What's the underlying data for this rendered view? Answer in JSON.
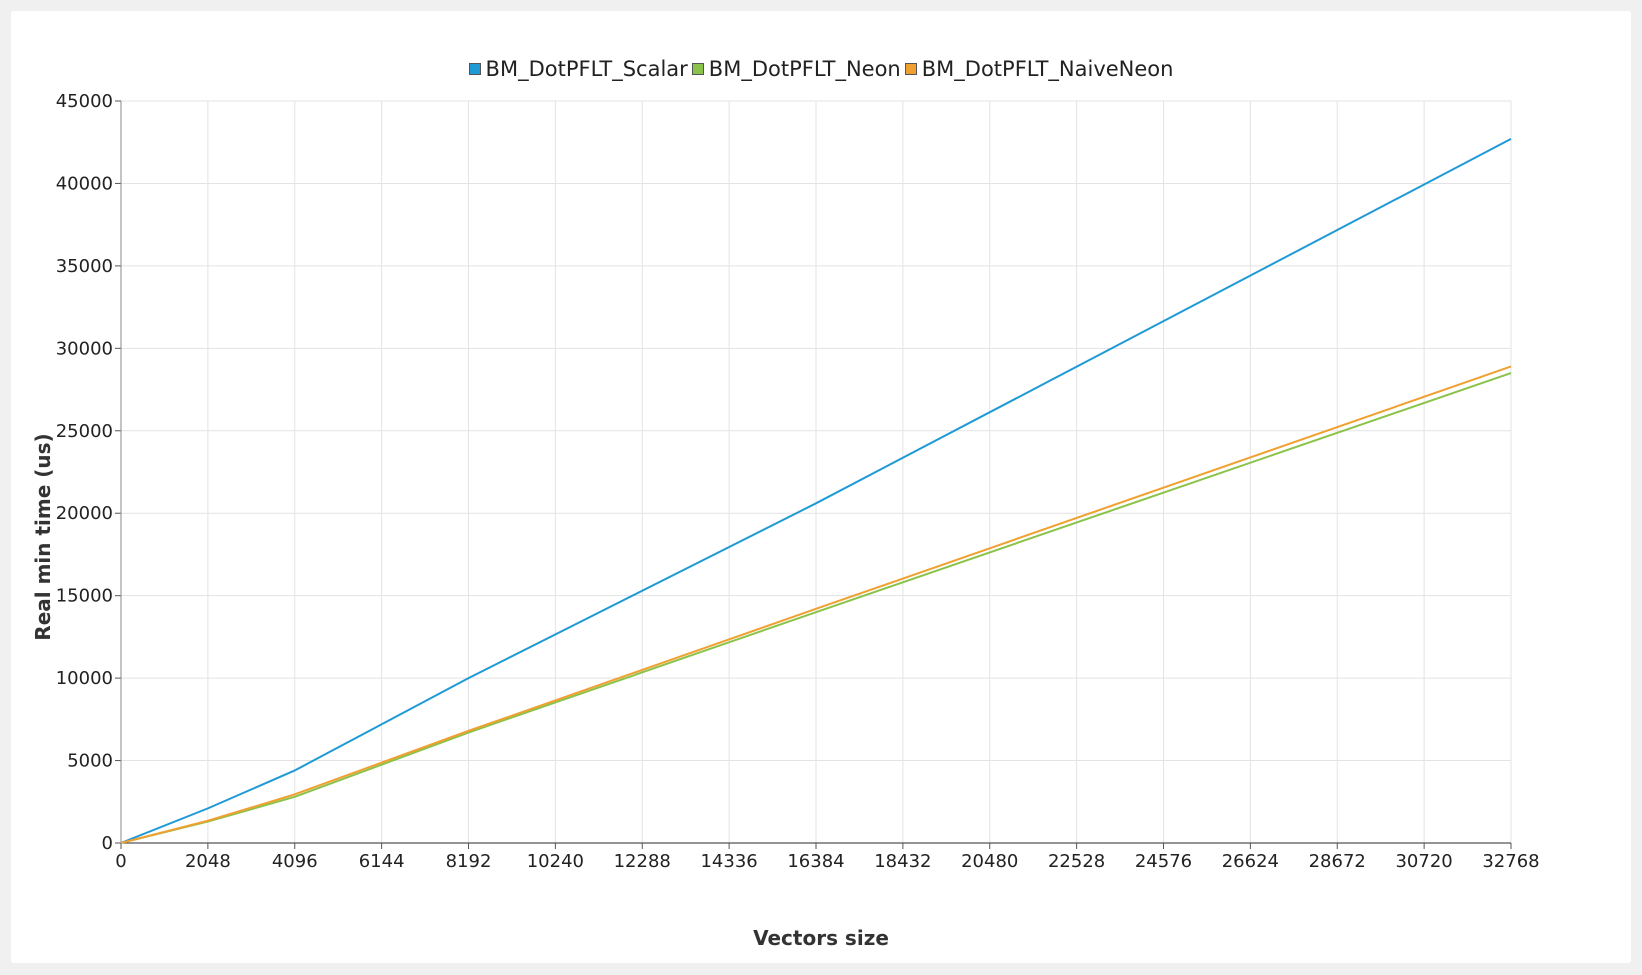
{
  "chart_data": {
    "type": "line",
    "xlabel": "Vectors size",
    "ylabel": "Real min time (us)",
    "xlim": [
      0,
      32768
    ],
    "ylim": [
      0,
      45000
    ],
    "xticks": [
      0,
      2048,
      4096,
      6144,
      8192,
      10240,
      12288,
      14336,
      16384,
      18432,
      20480,
      22528,
      24576,
      26624,
      28672,
      30720,
      32768
    ],
    "yticks": [
      0,
      5000,
      10000,
      15000,
      20000,
      25000,
      30000,
      35000,
      40000,
      45000
    ],
    "grid": true,
    "legend_position": "top-center",
    "series": [
      {
        "name": "BM_DotPFLT_Scalar",
        "color": "#1f9ad6",
        "x": [
          0,
          2048,
          4096,
          8192,
          16384,
          32768
        ],
        "y": [
          0,
          2100,
          4400,
          10000,
          20600,
          42700
        ]
      },
      {
        "name": "BM_DotPFLT_Neon",
        "color": "#8bc34a",
        "x": [
          0,
          2048,
          4096,
          8192,
          16384,
          32768
        ],
        "y": [
          0,
          1300,
          2800,
          6700,
          14000,
          28500
        ]
      },
      {
        "name": "BM_DotPFLT_NaiveNeon",
        "color": "#f0a030",
        "x": [
          0,
          2048,
          4096,
          8192,
          16384,
          32768
        ],
        "y": [
          0,
          1350,
          2950,
          6800,
          14200,
          28900
        ]
      }
    ]
  }
}
